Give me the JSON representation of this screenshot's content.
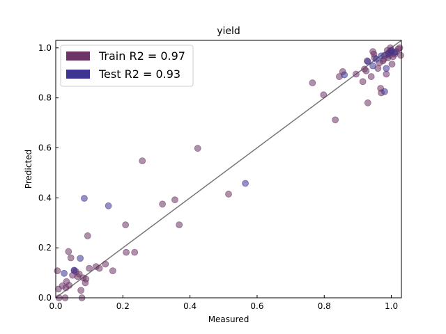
{
  "chart_data": {
    "type": "scatter",
    "title": "yield",
    "xlabel": "Measured",
    "ylabel": "Predicted",
    "xlim": [
      0,
      1.03
    ],
    "ylim": [
      0,
      1.03
    ],
    "xticks": [
      0.0,
      0.2,
      0.4,
      0.6,
      0.8,
      1.0
    ],
    "yticks": [
      0.0,
      0.2,
      0.4,
      0.6,
      0.8,
      1.0
    ],
    "xtick_labels": [
      "0.0",
      "0.2",
      "0.4",
      "0.6",
      "0.8",
      "1.0"
    ],
    "ytick_labels": [
      "0.0",
      "0.2",
      "0.4",
      "0.6",
      "0.8",
      "1.0"
    ],
    "grid": false,
    "legend_position": "top-left",
    "reference_line": {
      "from": [
        0,
        0
      ],
      "to": [
        1.03,
        1.03
      ],
      "color": "#777777"
    },
    "series": [
      {
        "name": "Train R2 = 0.97",
        "color": "#6e3465",
        "x": [
          0.005,
          0.008,
          0.01,
          0.02,
          0.028,
          0.03,
          0.032,
          0.038,
          0.04,
          0.045,
          0.05,
          0.055,
          0.06,
          0.065,
          0.07,
          0.075,
          0.078,
          0.082,
          0.088,
          0.09,
          0.095,
          0.1,
          0.12,
          0.13,
          0.148,
          0.17,
          0.208,
          0.21,
          0.235,
          0.258,
          0.318,
          0.355,
          0.368,
          0.423,
          0.515,
          0.765,
          0.798,
          0.833,
          0.845,
          0.855,
          0.895,
          0.915,
          0.92,
          0.925,
          0.928,
          0.93,
          0.94,
          0.945,
          0.948,
          0.95,
          0.96,
          0.965,
          0.968,
          0.97,
          0.975,
          0.98,
          0.985,
          0.99,
          0.992,
          0.995,
          0.997,
          1.0,
          1.002,
          1.005,
          1.01,
          1.015,
          1.02,
          1.025,
          1.028,
          0.998,
          0.988,
          0.978
        ],
        "y": [
          0.108,
          0.035,
          0.0,
          0.048,
          0.0,
          0.04,
          0.065,
          0.185,
          0.05,
          0.16,
          0.09,
          0.11,
          0.105,
          0.085,
          0.095,
          0.03,
          0.0,
          0.08,
          0.06,
          0.075,
          0.248,
          0.118,
          0.125,
          0.118,
          0.135,
          0.108,
          0.292,
          0.182,
          0.182,
          0.548,
          0.375,
          0.392,
          0.292,
          0.598,
          0.415,
          0.86,
          0.812,
          0.712,
          0.885,
          0.905,
          0.895,
          0.865,
          0.915,
          0.908,
          0.948,
          0.78,
          0.885,
          0.985,
          0.975,
          0.96,
          0.918,
          0.94,
          0.838,
          0.82,
          0.948,
          0.97,
          0.895,
          0.96,
          0.98,
          0.97,
          1.0,
          0.99,
          0.935,
          0.965,
          0.975,
          0.985,
          0.995,
          1.0,
          0.97,
          0.982,
          0.99,
          0.955
        ]
      },
      {
        "name": "Test R2 = 0.93",
        "color": "#3d3591",
        "x": [
          0.025,
          0.055,
          0.073,
          0.085,
          0.157,
          0.565,
          0.86,
          0.93,
          0.945,
          0.955,
          0.97,
          0.98,
          0.985,
          0.99,
          1.0,
          1.01
        ],
        "y": [
          0.098,
          0.11,
          0.158,
          0.398,
          0.368,
          0.458,
          0.892,
          0.945,
          0.928,
          0.955,
          0.968,
          0.825,
          0.918,
          0.975,
          0.988,
          0.982
        ]
      }
    ]
  }
}
